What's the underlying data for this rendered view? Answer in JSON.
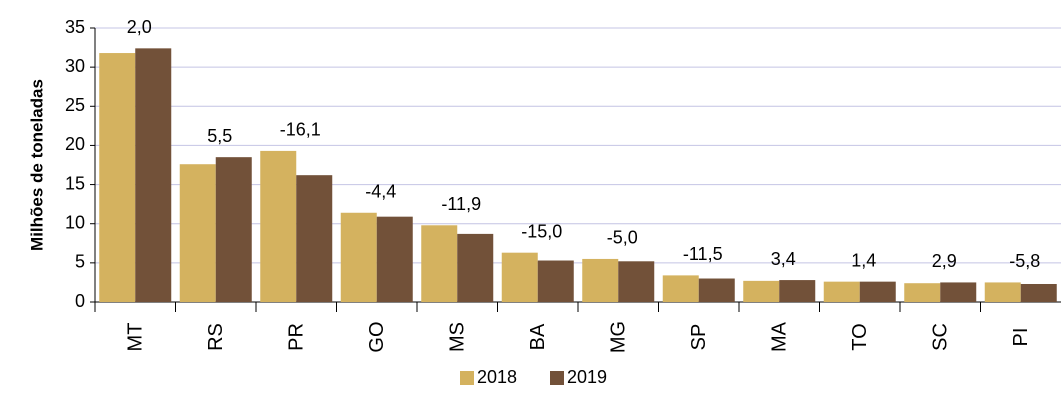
{
  "chart_data": {
    "type": "bar",
    "y_label": "Milhões de toneladas",
    "categories": [
      "MT",
      "RS",
      "PR",
      "GO",
      "MS",
      "BA",
      "MG",
      "SP",
      "MA",
      "TO",
      "SC",
      "PI"
    ],
    "series": [
      {
        "name": "2018",
        "color": "#d4b25f",
        "values": [
          31.8,
          17.6,
          19.3,
          11.4,
          9.8,
          6.3,
          5.5,
          3.4,
          2.7,
          2.6,
          2.4,
          2.5
        ]
      },
      {
        "name": "2019",
        "color": "#725139",
        "values": [
          32.4,
          18.5,
          16.2,
          10.9,
          8.7,
          5.3,
          5.2,
          3.0,
          2.8,
          2.6,
          2.5,
          2.3
        ]
      }
    ],
    "annotations": [
      "2,0",
      "5,5",
      "-16,1",
      "-4,4",
      "-11,9",
      "-15,0",
      "-5,0",
      "-11,5",
      "3,4",
      "1,4",
      "2,9",
      "-5,8"
    ],
    "ylim": [
      0,
      35
    ],
    "yticks": [
      0,
      5,
      10,
      15,
      20,
      25,
      30,
      35
    ],
    "grid": true,
    "legend": "bottom"
  }
}
